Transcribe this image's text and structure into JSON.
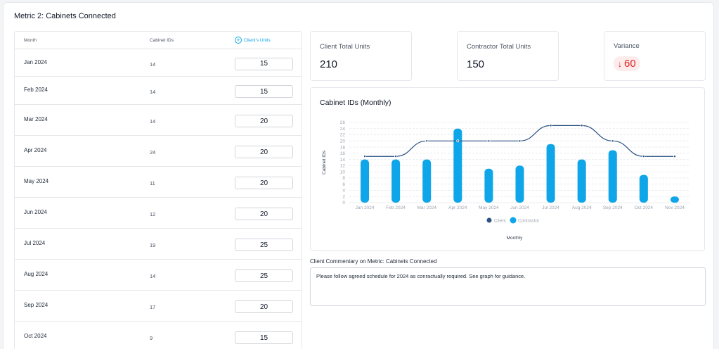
{
  "page": {
    "title": "Metric 2: Cabinets Connected"
  },
  "table": {
    "headers": {
      "month": "Month",
      "ids": "Cabinet IDs",
      "units": "Client's Units"
    },
    "rows": [
      {
        "month": "Jan 2024",
        "ids": "14",
        "units": "15"
      },
      {
        "month": "Feb 2024",
        "ids": "14",
        "units": "15"
      },
      {
        "month": "Mar 2024",
        "ids": "14",
        "units": "20"
      },
      {
        "month": "Apr 2024",
        "ids": "24",
        "units": "20"
      },
      {
        "month": "May 2024",
        "ids": "11",
        "units": "20"
      },
      {
        "month": "Jun 2024",
        "ids": "12",
        "units": "20"
      },
      {
        "month": "Jul 2024",
        "ids": "19",
        "units": "25"
      },
      {
        "month": "Aug 2024",
        "ids": "14",
        "units": "25"
      },
      {
        "month": "Sep 2024",
        "ids": "17",
        "units": "20"
      },
      {
        "month": "Oct 2024",
        "ids": "9",
        "units": "15"
      }
    ]
  },
  "stats": {
    "client": {
      "label": "Client Total Units",
      "value": "210"
    },
    "contractor": {
      "label": "Contractor Total Units",
      "value": "150"
    },
    "variance": {
      "label": "Variance",
      "value": "60",
      "icon": "arrow-down-icon",
      "color": "#dc2626"
    }
  },
  "chart_data": {
    "type": "bar",
    "title": "Cabinet IDs (Monthly)",
    "xlabel": "Monthly",
    "ylabel": "Cabinet IDs",
    "ylim": [
      0,
      26
    ],
    "yticks": [
      0,
      2,
      4,
      6,
      8,
      10,
      12,
      14,
      16,
      18,
      20,
      22,
      24,
      26
    ],
    "categories": [
      "Jan 2024",
      "Feb 2024",
      "Mar 2024",
      "Apr 2024",
      "May 2024",
      "Jun 2024",
      "Jul 2024",
      "Aug 2024",
      "Sep 2024",
      "Oct 2024",
      "Nov 2024"
    ],
    "series": [
      {
        "name": "Client",
        "kind": "line",
        "color": "#2c5282",
        "values": [
          15,
          15,
          20,
          20,
          20,
          20,
          25,
          25,
          20,
          15,
          15
        ]
      },
      {
        "name": "Contractor",
        "kind": "bar",
        "color": "#0ea5e9",
        "values": [
          14,
          14,
          14,
          24,
          11,
          12,
          19,
          14,
          17,
          9,
          2
        ]
      }
    ],
    "grid": true,
    "legend": "bottom"
  },
  "comment": {
    "label": "Client Commentary on Metric: Cabinets Connected",
    "text": "Please follow agreed schedule for 2024 as conractually required. See graph for guidance."
  }
}
